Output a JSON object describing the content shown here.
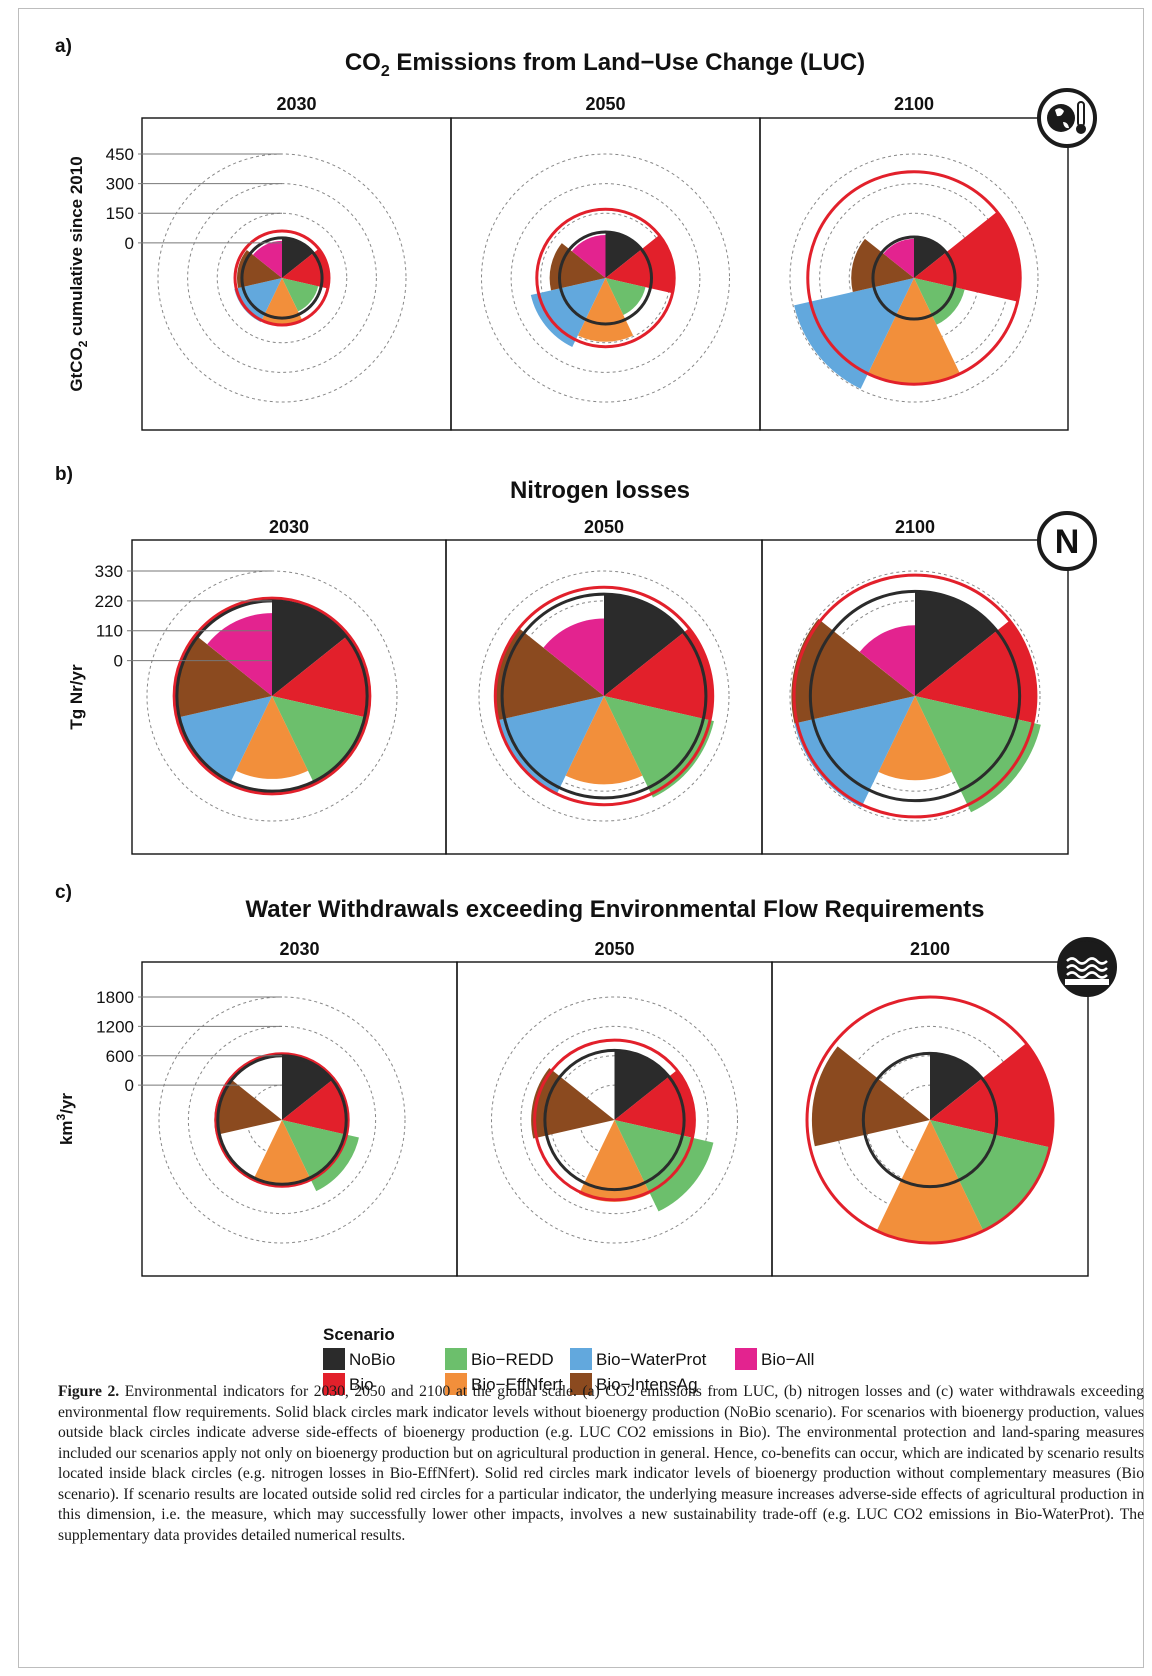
{
  "chart_data": [
    {
      "type": "polar-area",
      "label": "a)",
      "title": "CO2 Emissions from Land−Use Change (LUC)",
      "title_main": "CO",
      "title_sub": "2",
      "title_rest": " Emissions from Land−Use Change (LUC)",
      "ylabel": "GtCO2 cumulative since 2010",
      "ylabel_main": "GtCO",
      "ylabel_sub": "2",
      "ylabel_rest": " cumulative since 2010",
      "ticks": [
        0,
        150,
        300,
        450
      ],
      "tick_labels": [
        "0",
        "150",
        "300",
        "450"
      ],
      "icon": "globe-thermometer-icon",
      "scale_max": 450,
      "panels": [
        {
          "year": "2030",
          "values": {
            "NoBio": 25,
            "Bio": 60,
            "Bio-REDD": 10,
            "Bio-EffNfert": 55,
            "Bio-WaterProt": 70,
            "Bio-IntensAg": 50,
            "Bio-All": 10
          }
        },
        {
          "year": "2050",
          "values": {
            "NoBio": 55,
            "Bio": 170,
            "Bio-REDD": 30,
            "Bio-EffNfert": 145,
            "Bio-WaterProt": 210,
            "Bio-IntensAg": 105,
            "Bio-All": 40
          }
        },
        {
          "year": "2100",
          "values": {
            "NoBio": 30,
            "Bio": 360,
            "Bio-REDD": 85,
            "Bio-EffNfert": 360,
            "Bio-WaterProt": 445,
            "Bio-IntensAg": 140,
            "Bio-All": 20
          }
        }
      ]
    },
    {
      "type": "polar-area",
      "label": "b)",
      "title": "Nitrogen losses",
      "title_main": "Nitrogen losses",
      "title_sub": "",
      "title_rest": "",
      "ylabel": "Tg Nr/yr",
      "ylabel_main": "Tg Nr/yr",
      "ylabel_sub": "",
      "ylabel_rest": "",
      "ticks": [
        0,
        110,
        220,
        330
      ],
      "tick_labels": [
        "0",
        "110",
        "220",
        "330"
      ],
      "icon": "nitrogen-n-icon",
      "scale_max": 330,
      "panels": [
        {
          "year": "2030",
          "values": {
            "NoBio": 220,
            "Bio": 230,
            "Bio-REDD": 235,
            "Bio-EffNfert": 175,
            "Bio-WaterProt": 225,
            "Bio-IntensAg": 225,
            "Bio-All": 175
          }
        },
        {
          "year": "2050",
          "values": {
            "NoBio": 245,
            "Bio": 270,
            "Bio-REDD": 285,
            "Bio-EffNfert": 195,
            "Bio-WaterProt": 270,
            "Bio-IntensAg": 270,
            "Bio-All": 155
          }
        },
        {
          "year": "2100",
          "values": {
            "NoBio": 255,
            "Bio": 315,
            "Bio-REDD": 345,
            "Bio-EffNfert": 180,
            "Bio-WaterProt": 325,
            "Bio-IntensAg": 325,
            "Bio-All": 130
          }
        }
      ]
    },
    {
      "type": "polar-area",
      "label": "c)",
      "title": "Water Withdrawals exceeding Environmental Flow Requirements",
      "title_main": "Water Withdrawals exceeding Environmental Flow Requirements",
      "title_sub": "",
      "title_rest": "",
      "ylabel": "km3/yr",
      "ylabel_main": "km",
      "ylabel_sup": "3",
      "ylabel_rest": "/yr",
      "ticks": [
        0,
        600,
        1200,
        1800
      ],
      "tick_labels": [
        "0",
        "600",
        "1200",
        "1800"
      ],
      "icon": "water-waves-icon",
      "scale_max": 1800,
      "panels": [
        {
          "year": "2030",
          "values": {
            "NoBio": 600,
            "Bio": 640,
            "Bio-REDD": 900,
            "Bio-EffNfert": 650,
            "Bio-WaterProt": 0,
            "Bio-IntensAg": 670,
            "Bio-All": 0
          }
        },
        {
          "year": "2050",
          "values": {
            "NoBio": 710,
            "Bio": 920,
            "Bio-REDD": 1360,
            "Bio-EffNfert": 960,
            "Bio-WaterProt": 0,
            "Bio-IntensAg": 990,
            "Bio-All": 0
          }
        },
        {
          "year": "2100",
          "values": {
            "NoBio": 650,
            "Bio": 1800,
            "Bio-REDD": 1800,
            "Bio-EffNfert": 1800,
            "Bio-WaterProt": 0,
            "Bio-IntensAg": 1700,
            "Bio-All": 0
          }
        }
      ]
    }
  ],
  "legend": {
    "title": "Scenario",
    "items": [
      {
        "name": "NoBio",
        "color": "#2b2b2b"
      },
      {
        "name": "Bio",
        "color": "#e2202b"
      },
      {
        "name": "Bio−REDD",
        "color": "#6cbf6c"
      },
      {
        "name": "Bio−EffNfert",
        "color": "#f28f3b"
      },
      {
        "name": "Bio−WaterProt",
        "color": "#62a8dd"
      },
      {
        "name": "Bio−IntensAg",
        "color": "#8b4a1f"
      },
      {
        "name": "Bio−All",
        "color": "#e3238f"
      }
    ]
  },
  "caption": {
    "figure_label": "Figure 2.",
    "text": " Environmental indicators for 2030, 2050 and 2100 at the global scale. (a) CO2 emissions from LUC, (b) nitrogen losses and (c) water withdrawals exceeding environmental flow requirements. Solid black circles mark indicator levels without bioenergy production (NoBio scenario). For scenarios with bioenergy production, values outside black circles indicate adverse side-effects of bioenergy production (e.g. LUC CO2 emissions in Bio). The environmental protection and land-sparing measures included our scenarios apply not only on bioenergy production but on agricultural production in general. Hence, co-benefits can occur, which are indicated by scenario results located inside black circles (e.g. nitrogen losses in Bio-EffNfert). Solid red circles mark indicator levels of bioenergy production without complementary measures (Bio scenario). If scenario results are located outside solid red circles for a particular indicator, the underlying measure increases adverse-side effects of agricultural production in this dimension, i.e. the measure, which may successfully lower other impacts, involves a new sustainability trade-off (e.g. LUC CO2 emissions in Bio-WaterProt). The supplementary data provides detailed numerical results."
  }
}
